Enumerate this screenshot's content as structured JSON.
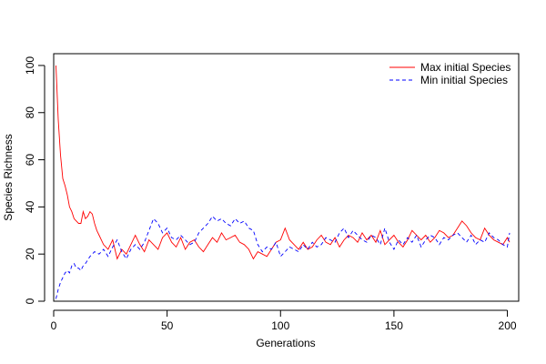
{
  "chart_data": {
    "type": "line",
    "title": "",
    "xlabel": "Generations",
    "ylabel": "Species Richness",
    "xlim": [
      0,
      205
    ],
    "ylim": [
      0,
      105
    ],
    "x_ticks": [
      0,
      50,
      100,
      150,
      200
    ],
    "y_ticks": [
      0,
      20,
      40,
      60,
      80,
      100
    ],
    "grid": false,
    "legend_position": "top-right",
    "series": [
      {
        "name": "Max initial Species",
        "color": "#ff0000",
        "line_style": "solid",
        "x": [
          1,
          2,
          3,
          4,
          5,
          6,
          7,
          8,
          9,
          10,
          11,
          12,
          13,
          14,
          15,
          16,
          17,
          18,
          19,
          20,
          22,
          24,
          26,
          28,
          30,
          32,
          34,
          36,
          38,
          40,
          42,
          44,
          46,
          48,
          50,
          52,
          54,
          56,
          58,
          60,
          62,
          64,
          66,
          68,
          70,
          72,
          74,
          76,
          78,
          80,
          82,
          84,
          86,
          88,
          90,
          92,
          94,
          96,
          98,
          100,
          102,
          104,
          106,
          108,
          110,
          112,
          114,
          116,
          118,
          120,
          122,
          124,
          126,
          128,
          130,
          132,
          134,
          136,
          138,
          140,
          142,
          144,
          146,
          148,
          150,
          152,
          154,
          156,
          158,
          160,
          162,
          164,
          166,
          168,
          170,
          172,
          174,
          176,
          178,
          180,
          182,
          184,
          186,
          188,
          190,
          192,
          194,
          196,
          198,
          200,
          201
        ],
        "y": [
          100,
          77,
          62,
          52,
          49,
          45,
          40,
          38,
          35,
          34,
          33,
          33,
          38,
          35,
          36,
          38,
          37,
          33,
          30,
          28,
          24,
          22,
          26,
          18,
          22,
          20,
          24,
          28,
          24,
          21,
          26,
          24,
          22,
          27,
          29,
          25,
          23,
          27,
          22,
          25,
          26,
          23,
          21,
          24,
          27,
          25,
          29,
          26,
          27,
          28,
          25,
          24,
          22,
          18,
          21,
          20,
          19,
          22,
          25,
          26,
          31,
          26,
          24,
          22,
          25,
          22,
          23,
          26,
          28,
          25,
          24,
          27,
          23,
          26,
          28,
          27,
          25,
          29,
          26,
          28,
          25,
          30,
          24,
          26,
          28,
          25,
          23,
          26,
          30,
          28,
          26,
          28,
          25,
          27,
          30,
          29,
          27,
          28,
          31,
          34,
          32,
          29,
          27,
          26,
          31,
          28,
          26,
          25,
          24,
          27,
          25
        ]
      },
      {
        "name": "Min initial Species",
        "color": "#0000ff",
        "line_style": "dashed",
        "x": [
          1,
          2,
          3,
          4,
          5,
          6,
          7,
          8,
          9,
          10,
          11,
          12,
          13,
          14,
          16,
          18,
          20,
          22,
          24,
          26,
          28,
          30,
          32,
          34,
          36,
          38,
          40,
          42,
          44,
          46,
          48,
          50,
          52,
          54,
          56,
          58,
          60,
          62,
          64,
          66,
          68,
          70,
          72,
          74,
          76,
          78,
          80,
          82,
          84,
          86,
          88,
          90,
          92,
          94,
          96,
          98,
          100,
          102,
          104,
          106,
          108,
          110,
          112,
          114,
          116,
          118,
          120,
          122,
          124,
          126,
          128,
          130,
          132,
          134,
          136,
          138,
          140,
          142,
          144,
          146,
          148,
          150,
          152,
          154,
          156,
          158,
          160,
          162,
          164,
          166,
          168,
          170,
          172,
          174,
          176,
          178,
          180,
          182,
          184,
          186,
          188,
          190,
          192,
          194,
          196,
          198,
          200,
          201
        ],
        "y": [
          1,
          5,
          8,
          10,
          12,
          13,
          12,
          15,
          16,
          14,
          14,
          13,
          15,
          16,
          19,
          21,
          20,
          22,
          19,
          23,
          26,
          21,
          18,
          22,
          24,
          22,
          25,
          30,
          35,
          33,
          29,
          31,
          27,
          26,
          28,
          26,
          24,
          25,
          29,
          31,
          33,
          36,
          34,
          35,
          33,
          32,
          35,
          33,
          34,
          31,
          30,
          24,
          21,
          23,
          22,
          25,
          19,
          21,
          23,
          22,
          21,
          24,
          22,
          25,
          23,
          24,
          27,
          26,
          25,
          29,
          31,
          27,
          30,
          28,
          26,
          25,
          28,
          27,
          24,
          31,
          25,
          22,
          26,
          24,
          27,
          25,
          28,
          23,
          26,
          28,
          27,
          24,
          27,
          26,
          28,
          29,
          27,
          25,
          28,
          24,
          26,
          25,
          29,
          27,
          26,
          24,
          23,
          29
        ]
      }
    ]
  }
}
